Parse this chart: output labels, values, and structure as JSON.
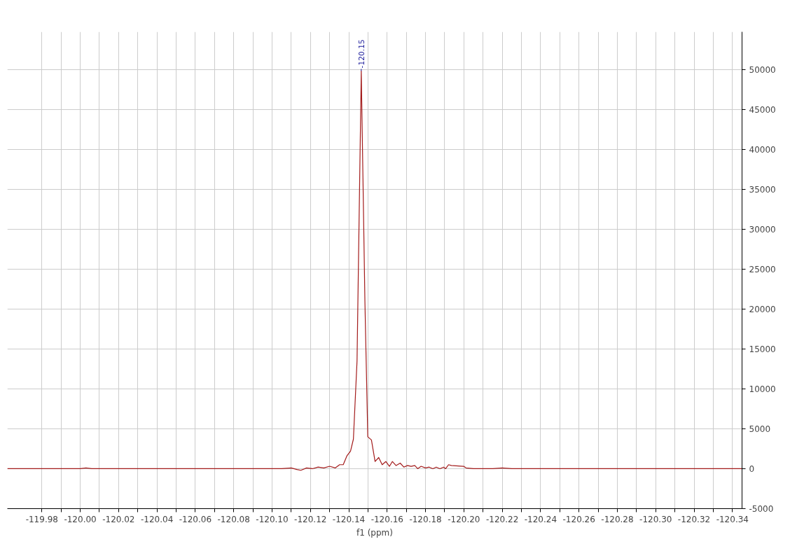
{
  "chart_data": {
    "type": "line",
    "xlabel": "f1 (ppm)",
    "xlim": [
      -119.962,
      -120.345
    ],
    "ylim": [
      -5000,
      54700
    ],
    "xticks": [
      -119.98,
      {
        "value": -119.99,
        "label": null
      },
      {
        "value": -120.0,
        "label": "-120.00"
      },
      {
        "value": -120.01,
        "label": null
      },
      -120.02,
      {
        "value": -120.03,
        "label": null
      },
      -120.04,
      {
        "value": -120.05,
        "label": null
      },
      -120.06,
      {
        "value": -120.07,
        "label": null
      },
      -120.08,
      {
        "value": -120.09,
        "label": null
      },
      {
        "value": -120.1,
        "label": "-120.10"
      },
      {
        "value": -120.11,
        "label": null
      },
      -120.12,
      {
        "value": -120.13,
        "label": null
      },
      -120.14,
      {
        "value": -120.15,
        "label": null
      },
      -120.16,
      {
        "value": -120.17,
        "label": null
      },
      -120.18,
      {
        "value": -120.19,
        "label": null
      },
      {
        "value": -120.2,
        "label": "-120.20"
      },
      {
        "value": -120.21,
        "label": null
      },
      -120.22,
      {
        "value": -120.23,
        "label": null
      },
      -120.24,
      {
        "value": -120.25,
        "label": null
      },
      -120.26,
      {
        "value": -120.27,
        "label": null
      },
      -120.28,
      {
        "value": -120.29,
        "label": null
      },
      {
        "value": -120.3,
        "label": "-120.30"
      },
      {
        "value": -120.31,
        "label": null
      },
      -120.32,
      {
        "value": -120.33,
        "label": null
      },
      -120.34
    ],
    "yticks": [
      -5000,
      0,
      5000,
      10000,
      15000,
      20000,
      25000,
      30000,
      35000,
      40000,
      45000,
      50000
    ],
    "grid": true,
    "marker": "none",
    "line_style": "solid",
    "annotations": [
      {
        "text": "-120.15",
        "x": -120.1465,
        "y": 49800
      }
    ],
    "series": [
      {
        "color": "#a31b1b",
        "x": [
          -119.962,
          -120.0,
          -120.003,
          -120.006,
          -120.05,
          -120.08,
          -120.09,
          -120.1,
          -120.105,
          -120.11,
          -120.113,
          -120.115,
          -120.118,
          -120.121,
          -120.124,
          -120.127,
          -120.13,
          -120.133,
          -120.1352,
          -120.1371,
          -120.139,
          -120.1409,
          -120.1424,
          -120.1443,
          -120.1465,
          -120.1484,
          -120.1499,
          -120.1518,
          -120.1537,
          -120.1556,
          -120.1574,
          -120.1593,
          -120.1612,
          -120.1627,
          -120.1646,
          -120.1668,
          -120.1687,
          -120.1706,
          -120.1725,
          -120.1744,
          -120.1759,
          -120.1777,
          -120.18,
          -120.1819,
          -120.1838,
          -120.1856,
          -120.1875,
          -120.1894,
          -120.1905,
          -120.192,
          -120.1935,
          -120.1999,
          -120.2011,
          -120.205,
          -120.21,
          -120.215,
          -120.22,
          -120.225,
          -120.23,
          -120.25,
          -120.27,
          -120.29,
          -120.31,
          -120.33,
          -120.345
        ],
        "values": [
          0,
          0,
          100,
          0,
          0,
          0,
          0,
          0,
          0,
          100,
          -100,
          -200,
          100,
          0,
          200,
          100,
          300,
          100,
          500,
          500,
          1600,
          2200,
          3700,
          13500,
          49800,
          21000,
          4000,
          3600,
          900,
          1400,
          500,
          900,
          300,
          900,
          400,
          700,
          200,
          400,
          300,
          400,
          0,
          300,
          100,
          200,
          0,
          200,
          0,
          200,
          0,
          500,
          400,
          300,
          100,
          0,
          0,
          0,
          100,
          0,
          0,
          0,
          0,
          0,
          0,
          0,
          0
        ]
      }
    ]
  }
}
